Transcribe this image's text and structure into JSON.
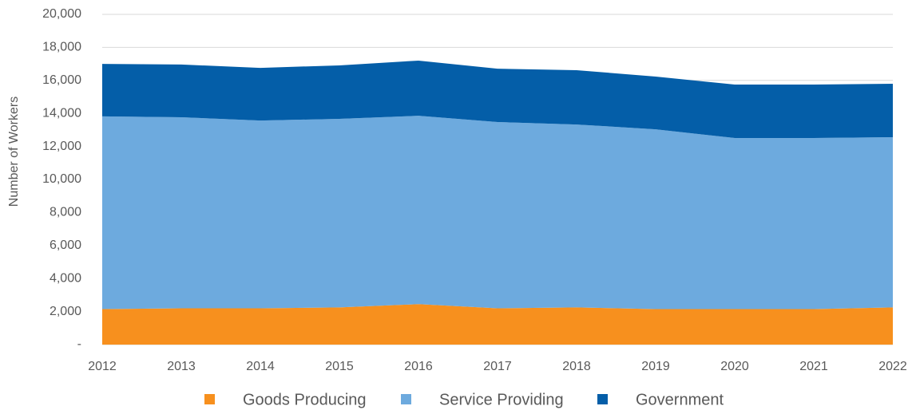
{
  "chart_data": {
    "type": "stacked_area",
    "ylabel": "Number of Workers",
    "categories": [
      "2012",
      "2013",
      "2014",
      "2015",
      "2016",
      "2017",
      "2018",
      "2019",
      "2020",
      "2021",
      "2022"
    ],
    "series": [
      {
        "name": "Goods Producing",
        "color": "#f7901e",
        "values": [
          2150,
          2200,
          2200,
          2250,
          2450,
          2200,
          2250,
          2150,
          2150,
          2150,
          2250
        ]
      },
      {
        "name": "Service Providing",
        "color": "#6daade",
        "values": [
          11670,
          11570,
          11370,
          11420,
          11410,
          11280,
          11080,
          10890,
          10360,
          10360,
          10310
        ]
      },
      {
        "name": "Government",
        "color": "#045ea8",
        "values": [
          3180,
          3190,
          3190,
          3240,
          3340,
          3230,
          3290,
          3190,
          3240,
          3240,
          3240
        ]
      }
    ],
    "ylim": [
      0,
      20000
    ],
    "yticks": [
      {
        "value": 0,
        "label": "-"
      },
      {
        "value": 2000,
        "label": "2,000"
      },
      {
        "value": 4000,
        "label": "4,000"
      },
      {
        "value": 6000,
        "label": "6,000"
      },
      {
        "value": 8000,
        "label": "8,000"
      },
      {
        "value": 10000,
        "label": "10,000"
      },
      {
        "value": 12000,
        "label": "12,000"
      },
      {
        "value": 14000,
        "label": "14,000"
      },
      {
        "value": 16000,
        "label": "16,000"
      },
      {
        "value": 18000,
        "label": "18,000"
      },
      {
        "value": 20000,
        "label": "20,000"
      }
    ],
    "grid": true,
    "legend": "bottom"
  }
}
